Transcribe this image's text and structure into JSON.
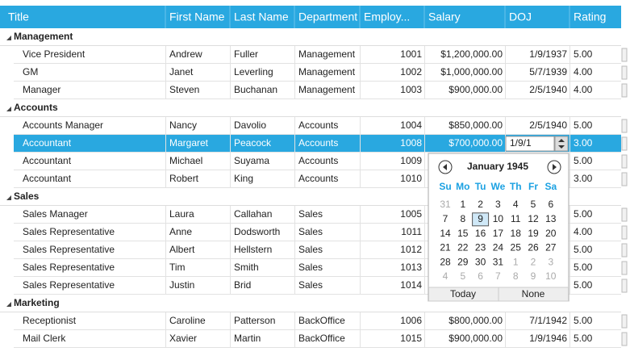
{
  "grid": {
    "columns": [
      "Title",
      "First Name",
      "Last Name",
      "Department",
      "Employ...",
      "Salary",
      "DOJ",
      "Rating"
    ],
    "groups": [
      {
        "name": "Management",
        "rows": [
          [
            "Vice President",
            "Andrew",
            "Fuller",
            "Management",
            "1001",
            "$1,200,000.00",
            "1/9/1937",
            "5.00"
          ],
          [
            "GM",
            "Janet",
            "Leverling",
            "Management",
            "1002",
            "$1,000,000.00",
            "5/7/1939",
            "4.00"
          ],
          [
            "Manager",
            "Steven",
            "Buchanan",
            "Management",
            "1003",
            "$900,000.00",
            "2/5/1940",
            "4.00"
          ]
        ]
      },
      {
        "name": "Accounts",
        "rows": [
          [
            "Accounts Manager",
            "Nancy",
            "Davolio",
            "Accounts",
            "1004",
            "$850,000.00",
            "2/5/1940",
            "5.00"
          ],
          [
            "Accountant",
            "Margaret",
            "Peacock",
            "Accounts",
            "1008",
            "$700,000.00",
            null,
            "3.00"
          ],
          [
            "Accountant",
            "Michael",
            "Suyama",
            "Accounts",
            "1009",
            null,
            null,
            "5.00"
          ],
          [
            "Accountant",
            "Robert",
            "King",
            "Accounts",
            "1010",
            null,
            null,
            "3.00"
          ]
        ]
      },
      {
        "name": "Sales",
        "rows": [
          [
            "Sales Manager",
            "Laura",
            "Callahan",
            "Sales",
            "1005",
            null,
            null,
            "5.00"
          ],
          [
            "Sales Representative",
            "Anne",
            "Dodsworth",
            "Sales",
            "1011",
            null,
            null,
            "4.00"
          ],
          [
            "Sales Representative",
            "Albert",
            "Hellstern",
            "Sales",
            "1012",
            null,
            null,
            "5.00"
          ],
          [
            "Sales Representative",
            "Tim",
            "Smith",
            "Sales",
            "1013",
            null,
            null,
            "5.00"
          ],
          [
            "Sales Representative",
            "Justin",
            "Brid",
            "Sales",
            "1014",
            null,
            null,
            "5.00"
          ]
        ]
      },
      {
        "name": "Marketing",
        "rows": [
          [
            "Receptionist",
            "Caroline",
            "Patterson",
            "BackOffice",
            "1006",
            "$800,000.00",
            "7/1/1942",
            "5.00"
          ],
          [
            "Mail Clerk",
            "Xavier",
            "Martin",
            "BackOffice",
            "1015",
            "$900,000.00",
            "1/9/1946",
            "5.00"
          ]
        ]
      }
    ]
  },
  "date_editor": {
    "value": "1/9/1"
  },
  "calendar": {
    "month": "January 1945",
    "weekdays": [
      "Su",
      "Mo",
      "Tu",
      "We",
      "Th",
      "Fr",
      "Sa"
    ],
    "days": [
      [
        "31",
        "1",
        "2",
        "3",
        "4",
        "5",
        "6"
      ],
      [
        "7",
        "8",
        "9",
        "10",
        "11",
        "12",
        "13"
      ],
      [
        "14",
        "15",
        "16",
        "17",
        "18",
        "19",
        "20"
      ],
      [
        "21",
        "22",
        "23",
        "24",
        "25",
        "26",
        "27"
      ],
      [
        "28",
        "29",
        "30",
        "31",
        "1",
        "2",
        "3"
      ],
      [
        "4",
        "5",
        "6",
        "7",
        "8",
        "9",
        "10"
      ]
    ],
    "buttons": [
      "Today",
      "None"
    ]
  }
}
